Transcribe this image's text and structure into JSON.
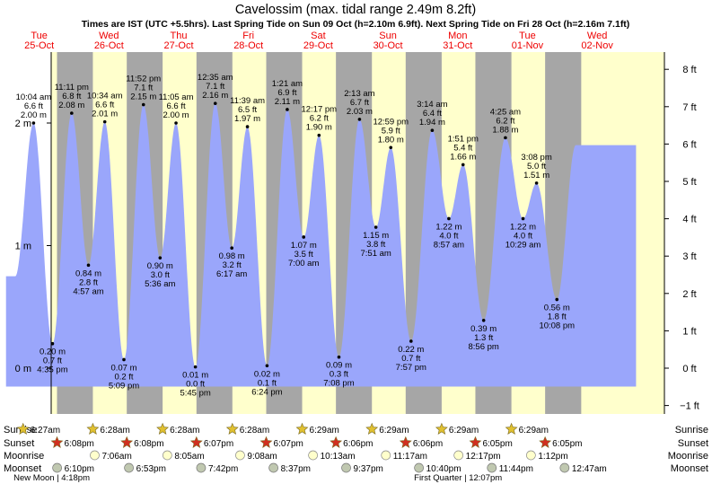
{
  "chart_data": {
    "type": "area",
    "title": "Cavelossim (max. tidal range 2.49m 8.2ft)",
    "subtitle": "Times are IST (UTC +5.5hrs). Last Spring Tide on Sun 09 Oct (h=2.10m 6.9ft). Next Spring Tide on Fri 28 Oct (h=2.16m 7.1ft)",
    "days": [
      {
        "weekday": "Tue",
        "date": "25-Oct"
      },
      {
        "weekday": "Wed",
        "date": "26-Oct"
      },
      {
        "weekday": "Thu",
        "date": "27-Oct"
      },
      {
        "weekday": "Fri",
        "date": "28-Oct"
      },
      {
        "weekday": "Sat",
        "date": "29-Oct"
      },
      {
        "weekday": "Sun",
        "date": "30-Oct"
      },
      {
        "weekday": "Mon",
        "date": "31-Oct"
      },
      {
        "weekday": "Tue",
        "date": "01-Nov"
      },
      {
        "weekday": "Wed",
        "date": "02-Nov"
      }
    ],
    "y_left_ticks": [
      {
        "value": 0,
        "label": "0 m"
      },
      {
        "value": 1,
        "label": "1 m"
      },
      {
        "value": 2,
        "label": "2 m"
      }
    ],
    "y_right_ticks": [
      {
        "value": -1,
        "label": "−1 ft"
      },
      {
        "value": 0,
        "label": "0 ft"
      },
      {
        "value": 1,
        "label": "1 ft"
      },
      {
        "value": 2,
        "label": "2 ft"
      },
      {
        "value": 3,
        "label": "3 ft"
      },
      {
        "value": 4,
        "label": "4 ft"
      },
      {
        "value": 5,
        "label": "5 ft"
      },
      {
        "value": 6,
        "label": "6 ft"
      },
      {
        "value": 7,
        "label": "7 ft"
      },
      {
        "value": 8,
        "label": "8 ft"
      }
    ],
    "ylim_m": [
      -0.36,
      2.65
    ],
    "xlim_hours": [
      0,
      216
    ],
    "daylight": [
      {
        "sunrise_h": 6.45,
        "sunset_h": 18.13
      },
      {
        "sunrise_h": 30.47,
        "sunset_h": 42.13
      },
      {
        "sunrise_h": 54.47,
        "sunset_h": 66.12
      },
      {
        "sunrise_h": 78.47,
        "sunset_h": 90.12
      },
      {
        "sunrise_h": 102.48,
        "sunset_h": 114.1
      },
      {
        "sunrise_h": 126.48,
        "sunset_h": 138.1
      },
      {
        "sunrise_h": 150.48,
        "sunset_h": 162.08
      },
      {
        "sunrise_h": 174.48,
        "sunset_h": 186.08
      }
    ],
    "tides": [
      {
        "hour": 10.07,
        "m": 2.0,
        "type": "high",
        "time": "10:04 am",
        "ft": "6.6 ft",
        "height": "2.00 m"
      },
      {
        "hour": 16.58,
        "m": 0.2,
        "type": "low",
        "time": "4:35 pm",
        "ft": "0.7 ft",
        "height": "0.20 m"
      },
      {
        "hour": 23.18,
        "m": 2.08,
        "type": "high",
        "time": "11:11 pm",
        "ft": "6.8 ft",
        "height": "2.08 m"
      },
      {
        "hour": 28.95,
        "m": 0.84,
        "type": "low",
        "time": "4:57 am",
        "ft": "2.8 ft",
        "height": "0.84 m"
      },
      {
        "hour": 34.57,
        "m": 2.01,
        "type": "high",
        "time": "10:34 am",
        "ft": "6.6 ft",
        "height": "2.01 m"
      },
      {
        "hour": 41.15,
        "m": 0.07,
        "type": "low",
        "time": "5:09 pm",
        "ft": "0.2 ft",
        "height": "0.07 m"
      },
      {
        "hour": 47.87,
        "m": 2.15,
        "type": "high",
        "time": "11:52 pm",
        "ft": "7.1 ft",
        "height": "2.15 m"
      },
      {
        "hour": 53.6,
        "m": 0.9,
        "type": "low",
        "time": "5:36 am",
        "ft": "3.0 ft",
        "height": "0.90 m"
      },
      {
        "hour": 59.08,
        "m": 2.0,
        "type": "high",
        "time": "11:05 am",
        "ft": "6.6 ft",
        "height": "2.00 m"
      },
      {
        "hour": 65.75,
        "m": 0.01,
        "type": "low",
        "time": "5:45 pm",
        "ft": "0.0 ft",
        "height": "0.01 m"
      },
      {
        "hour": 72.58,
        "m": 2.16,
        "type": "high",
        "time": "12:35 am",
        "ft": "7.1 ft",
        "height": "2.16 m"
      },
      {
        "hour": 78.28,
        "m": 0.98,
        "type": "low",
        "time": "6:17 am",
        "ft": "3.2 ft",
        "height": "0.98 m"
      },
      {
        "hour": 83.65,
        "m": 1.97,
        "type": "high",
        "time": "11:39 am",
        "ft": "6.5 ft",
        "height": "1.97 m"
      },
      {
        "hour": 90.4,
        "m": 0.02,
        "type": "low",
        "time": "6:24 pm",
        "ft": "0.1 ft",
        "height": "0.02 m"
      },
      {
        "hour": 97.35,
        "m": 2.11,
        "type": "high",
        "time": "1:21 am",
        "ft": "6.9 ft",
        "height": "2.11 m"
      },
      {
        "hour": 103.0,
        "m": 1.07,
        "type": "low",
        "time": "7:00 am",
        "ft": "3.5 ft",
        "height": "1.07 m"
      },
      {
        "hour": 108.28,
        "m": 1.9,
        "type": "high",
        "time": "12:17 pm",
        "ft": "6.2 ft",
        "height": "1.90 m"
      },
      {
        "hour": 115.13,
        "m": 0.09,
        "type": "low",
        "time": "7:08 pm",
        "ft": "0.3 ft",
        "height": "0.09 m"
      },
      {
        "hour": 122.22,
        "m": 2.03,
        "type": "high",
        "time": "2:13 am",
        "ft": "6.7 ft",
        "height": "2.03 m"
      },
      {
        "hour": 127.85,
        "m": 1.15,
        "type": "low",
        "time": "7:51 am",
        "ft": "3.8 ft",
        "height": "1.15 m"
      },
      {
        "hour": 132.98,
        "m": 1.8,
        "type": "high",
        "time": "12:59 pm",
        "ft": "5.9 ft",
        "height": "1.80 m"
      },
      {
        "hour": 139.95,
        "m": 0.22,
        "type": "low",
        "time": "7:57 pm",
        "ft": "0.7 ft",
        "height": "0.22 m"
      },
      {
        "hour": 147.23,
        "m": 1.94,
        "type": "high",
        "time": "3:14 am",
        "ft": "6.4 ft",
        "height": "1.94 m"
      },
      {
        "hour": 152.95,
        "m": 1.22,
        "type": "low",
        "time": "8:57 am",
        "ft": "4.0 ft",
        "height": "1.22 m"
      },
      {
        "hour": 157.85,
        "m": 1.66,
        "type": "high",
        "time": "1:51 pm",
        "ft": "5.4 ft",
        "height": "1.66 m"
      },
      {
        "hour": 164.93,
        "m": 0.39,
        "type": "low",
        "time": "8:56 pm",
        "ft": "1.3 ft",
        "height": "0.39 m"
      },
      {
        "hour": 172.42,
        "m": 1.88,
        "type": "high",
        "time": "4:25 am",
        "ft": "6.2 ft",
        "height": "1.88 m"
      },
      {
        "hour": 178.48,
        "m": 1.22,
        "type": "low",
        "time": "10:29 am",
        "ft": "4.0 ft",
        "height": "1.22 m"
      },
      {
        "hour": 183.13,
        "m": 1.51,
        "type": "high",
        "time": "3:08 pm",
        "ft": "5.0 ft",
        "height": "1.51 m"
      },
      {
        "hour": 190.13,
        "m": 0.56,
        "type": "low",
        "time": "10:08 pm",
        "ft": "1.8 ft",
        "height": "0.56 m"
      }
    ],
    "row_labels": [
      "Sunrise",
      "Sunset",
      "Moonrise",
      "Moonset"
    ],
    "sunrise": [
      {
        "hour": 6.45,
        "label": "6:27am"
      },
      {
        "hour": 30.47,
        "label": "6:28am"
      },
      {
        "hour": 54.47,
        "label": "6:28am"
      },
      {
        "hour": 78.47,
        "label": "6:28am"
      },
      {
        "hour": 102.48,
        "label": "6:29am"
      },
      {
        "hour": 126.48,
        "label": "6:29am"
      },
      {
        "hour": 150.48,
        "label": "6:29am"
      },
      {
        "hour": 174.48,
        "label": "6:29am"
      }
    ],
    "sunset": [
      {
        "hour": 18.13,
        "label": "6:08pm"
      },
      {
        "hour": 42.13,
        "label": "6:08pm"
      },
      {
        "hour": 66.12,
        "label": "6:07pm"
      },
      {
        "hour": 90.12,
        "label": "6:07pm"
      },
      {
        "hour": 114.1,
        "label": "6:06pm"
      },
      {
        "hour": 138.1,
        "label": "6:06pm"
      },
      {
        "hour": 162.08,
        "label": "6:05pm"
      },
      {
        "hour": 186.08,
        "label": "6:05pm"
      }
    ],
    "moonrise": [
      {
        "hour": 31.1,
        "label": "7:06am"
      },
      {
        "hour": 56.08,
        "label": "8:05am"
      },
      {
        "hour": 81.13,
        "label": "9:08am"
      },
      {
        "hour": 106.22,
        "label": "10:13am"
      },
      {
        "hour": 131.28,
        "label": "11:17am"
      },
      {
        "hour": 156.28,
        "label": "12:17pm"
      },
      {
        "hour": 181.2,
        "label": "1:12pm"
      }
    ],
    "moonset": [
      {
        "hour": 18.17,
        "label": "6:10pm"
      },
      {
        "hour": 42.88,
        "label": "6:53pm"
      },
      {
        "hour": 67.7,
        "label": "7:42pm"
      },
      {
        "hour": 92.62,
        "label": "8:37pm"
      },
      {
        "hour": 117.62,
        "label": "9:37pm"
      },
      {
        "hour": 142.67,
        "label": "10:40pm"
      },
      {
        "hour": 167.73,
        "label": "11:44pm"
      },
      {
        "hour": 192.78,
        "label": "12:47am"
      }
    ],
    "moon_phases": [
      {
        "hour": 16.3,
        "label": "New Moon | 4:18pm"
      },
      {
        "hour": 156.12,
        "label": "First Quarter | 12:07pm"
      }
    ],
    "colors": {
      "night": "#a6a6a6",
      "day": "#ffffcc",
      "water": "#9aa6fb",
      "day_label": "#ee0000",
      "sun": "#e0c030",
      "sunset": "#d03020",
      "moonrise": "#ffffcc",
      "moonset": "#c0c8b0"
    }
  }
}
